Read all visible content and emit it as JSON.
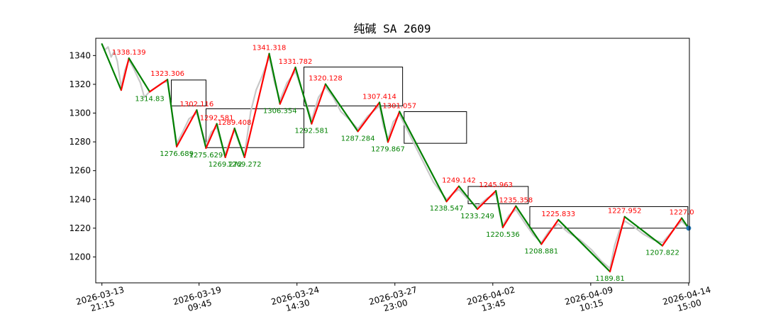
{
  "chart_data": {
    "type": "line",
    "title": "纯碱 SA 2609",
    "ylim": [
      1182,
      1352
    ],
    "x_index_range": [
      -8,
      762
    ],
    "yticks": [
      1200,
      1220,
      1240,
      1260,
      1280,
      1300,
      1320,
      1340
    ],
    "xticks": [
      {
        "x": 0,
        "label": [
          "2026-03-13",
          "21:15"
        ]
      },
      {
        "x": 126,
        "label": [
          "2026-03-19",
          "09:45"
        ]
      },
      {
        "x": 253,
        "label": [
          "2026-03-24",
          "14:30"
        ]
      },
      {
        "x": 380,
        "label": [
          "2026-03-27",
          "23:00"
        ]
      },
      {
        "x": 507,
        "label": [
          "2026-04-02",
          "13:45"
        ]
      },
      {
        "x": 634,
        "label": [
          "2026-04-09",
          "10:15"
        ]
      },
      {
        "x": 761,
        "label": [
          "2026-04-14",
          "15:00"
        ]
      }
    ],
    "colors": {
      "price": "#c8c8c8",
      "up_stroke": "#ff0000",
      "down_stroke": "#008000",
      "box": "#000000",
      "current_point": "#1f77b4"
    },
    "series": [
      {
        "name": "zigzag",
        "points": [
          {
            "x": 0,
            "y": 1348
          },
          {
            "x": 25,
            "y": 1316
          },
          {
            "x": 35,
            "y": 1338.139
          },
          {
            "x": 62,
            "y": 1314.83
          },
          {
            "x": 85,
            "y": 1323.306
          },
          {
            "x": 97,
            "y": 1276.689
          },
          {
            "x": 123,
            "y": 1302.116
          },
          {
            "x": 135,
            "y": 1275.629
          },
          {
            "x": 149,
            "y": 1292.581
          },
          {
            "x": 160,
            "y": 1269.272
          },
          {
            "x": 172,
            "y": 1289.408
          },
          {
            "x": 185,
            "y": 1269.272
          },
          {
            "x": 217,
            "y": 1341.318
          },
          {
            "x": 231,
            "y": 1306.354
          },
          {
            "x": 251,
            "y": 1331.782
          },
          {
            "x": 272,
            "y": 1292.581
          },
          {
            "x": 290,
            "y": 1320.128
          },
          {
            "x": 332,
            "y": 1287.284
          },
          {
            "x": 360,
            "y": 1307.414
          },
          {
            "x": 371,
            "y": 1279.867
          },
          {
            "x": 386,
            "y": 1301.057
          },
          {
            "x": 447,
            "y": 1238.547
          },
          {
            "x": 463,
            "y": 1249.142
          },
          {
            "x": 487,
            "y": 1233.249
          },
          {
            "x": 511,
            "y": 1245.963
          },
          {
            "x": 520,
            "y": 1220.536
          },
          {
            "x": 537,
            "y": 1235.358
          },
          {
            "x": 570,
            "y": 1208.881
          },
          {
            "x": 592,
            "y": 1225.833
          },
          {
            "x": 659,
            "y": 1189.81
          },
          {
            "x": 678,
            "y": 1227.952
          },
          {
            "x": 727,
            "y": 1207.822
          },
          {
            "x": 752,
            "y": 1227.0
          },
          {
            "x": 761,
            "y": 1220
          }
        ]
      },
      {
        "name": "price",
        "points": [
          {
            "x": 0,
            "y": 1348
          },
          {
            "x": 4,
            "y": 1344
          },
          {
            "x": 8,
            "y": 1346
          },
          {
            "x": 12,
            "y": 1339
          },
          {
            "x": 16,
            "y": 1343
          },
          {
            "x": 20,
            "y": 1336
          },
          {
            "x": 25,
            "y": 1318
          },
          {
            "x": 30,
            "y": 1330
          },
          {
            "x": 35,
            "y": 1337
          },
          {
            "x": 42,
            "y": 1330
          },
          {
            "x": 50,
            "y": 1321
          },
          {
            "x": 55,
            "y": 1311
          },
          {
            "x": 62,
            "y": 1315
          },
          {
            "x": 70,
            "y": 1318
          },
          {
            "x": 78,
            "y": 1321
          },
          {
            "x": 85,
            "y": 1322
          },
          {
            "x": 90,
            "y": 1304
          },
          {
            "x": 97,
            "y": 1279
          },
          {
            "x": 105,
            "y": 1287
          },
          {
            "x": 113,
            "y": 1296
          },
          {
            "x": 123,
            "y": 1300
          },
          {
            "x": 130,
            "y": 1287
          },
          {
            "x": 135,
            "y": 1278
          },
          {
            "x": 142,
            "y": 1287
          },
          {
            "x": 149,
            "y": 1290
          },
          {
            "x": 155,
            "y": 1279
          },
          {
            "x": 160,
            "y": 1271
          },
          {
            "x": 166,
            "y": 1281
          },
          {
            "x": 172,
            "y": 1288
          },
          {
            "x": 178,
            "y": 1279
          },
          {
            "x": 185,
            "y": 1271
          },
          {
            "x": 193,
            "y": 1301
          },
          {
            "x": 200,
            "y": 1316
          },
          {
            "x": 208,
            "y": 1326
          },
          {
            "x": 217,
            "y": 1339
          },
          {
            "x": 224,
            "y": 1321
          },
          {
            "x": 231,
            "y": 1309
          },
          {
            "x": 240,
            "y": 1321
          },
          {
            "x": 251,
            "y": 1329
          },
          {
            "x": 262,
            "y": 1312
          },
          {
            "x": 272,
            "y": 1295
          },
          {
            "x": 281,
            "y": 1311
          },
          {
            "x": 290,
            "y": 1318
          },
          {
            "x": 300,
            "y": 1311
          },
          {
            "x": 310,
            "y": 1301
          },
          {
            "x": 320,
            "y": 1296
          },
          {
            "x": 332,
            "y": 1289
          },
          {
            "x": 345,
            "y": 1298
          },
          {
            "x": 360,
            "y": 1305
          },
          {
            "x": 365,
            "y": 1291
          },
          {
            "x": 371,
            "y": 1282
          },
          {
            "x": 378,
            "y": 1294
          },
          {
            "x": 386,
            "y": 1299
          },
          {
            "x": 400,
            "y": 1284
          },
          {
            "x": 415,
            "y": 1268
          },
          {
            "x": 430,
            "y": 1252
          },
          {
            "x": 447,
            "y": 1240
          },
          {
            "x": 455,
            "y": 1244
          },
          {
            "x": 463,
            "y": 1247
          },
          {
            "x": 475,
            "y": 1240
          },
          {
            "x": 487,
            "y": 1235
          },
          {
            "x": 500,
            "y": 1241
          },
          {
            "x": 511,
            "y": 1244
          },
          {
            "x": 516,
            "y": 1230
          },
          {
            "x": 520,
            "y": 1222
          },
          {
            "x": 528,
            "y": 1229
          },
          {
            "x": 537,
            "y": 1233
          },
          {
            "x": 548,
            "y": 1224
          },
          {
            "x": 560,
            "y": 1215
          },
          {
            "x": 570,
            "y": 1210
          },
          {
            "x": 580,
            "y": 1218
          },
          {
            "x": 592,
            "y": 1223
          },
          {
            "x": 605,
            "y": 1217
          },
          {
            "x": 620,
            "y": 1212
          },
          {
            "x": 635,
            "y": 1205
          },
          {
            "x": 648,
            "y": 1197
          },
          {
            "x": 659,
            "y": 1192
          },
          {
            "x": 665,
            "y": 1208
          },
          {
            "x": 671,
            "y": 1218
          },
          {
            "x": 678,
            "y": 1225
          },
          {
            "x": 690,
            "y": 1221
          },
          {
            "x": 702,
            "y": 1216
          },
          {
            "x": 715,
            "y": 1212
          },
          {
            "x": 727,
            "y": 1210
          },
          {
            "x": 740,
            "y": 1218
          },
          {
            "x": 752,
            "y": 1225
          },
          {
            "x": 761,
            "y": 1220
          }
        ]
      }
    ],
    "pivot_labels": [
      {
        "x": 35,
        "y": 1338.139,
        "text": "1338.139",
        "kind": "high"
      },
      {
        "x": 62,
        "y": 1314.83,
        "text": "1314.83",
        "kind": "low"
      },
      {
        "x": 85,
        "y": 1323.306,
        "text": "1323.306",
        "kind": "high"
      },
      {
        "x": 97,
        "y": 1276.689,
        "text": "1276.689",
        "kind": "low"
      },
      {
        "x": 123,
        "y": 1302.116,
        "text": "1302.116",
        "kind": "high"
      },
      {
        "x": 135,
        "y": 1275.629,
        "text": "1275.629",
        "kind": "low"
      },
      {
        "x": 149,
        "y": 1292.581,
        "text": "1292.581",
        "kind": "high"
      },
      {
        "x": 160,
        "y": 1269.272,
        "text": "1269.272",
        "kind": "low"
      },
      {
        "x": 172,
        "y": 1289.408,
        "text": "1289.408",
        "kind": "high"
      },
      {
        "x": 185,
        "y": 1269.272,
        "text": "1269.272",
        "kind": "low"
      },
      {
        "x": 217,
        "y": 1341.318,
        "text": "1341.318",
        "kind": "high"
      },
      {
        "x": 231,
        "y": 1306.354,
        "text": "1306.354",
        "kind": "low"
      },
      {
        "x": 251,
        "y": 1331.782,
        "text": "1331.782",
        "kind": "high"
      },
      {
        "x": 272,
        "y": 1292.581,
        "text": "1292.581",
        "kind": "low"
      },
      {
        "x": 290,
        "y": 1320.128,
        "text": "1320.128",
        "kind": "high"
      },
      {
        "x": 332,
        "y": 1287.284,
        "text": "1287.284",
        "kind": "low"
      },
      {
        "x": 360,
        "y": 1307.414,
        "text": "1307.414",
        "kind": "high"
      },
      {
        "x": 371,
        "y": 1279.867,
        "text": "1279.867",
        "kind": "low"
      },
      {
        "x": 386,
        "y": 1301.057,
        "text": "1301.057",
        "kind": "high"
      },
      {
        "x": 447,
        "y": 1238.547,
        "text": "1238.547",
        "kind": "low"
      },
      {
        "x": 463,
        "y": 1249.142,
        "text": "1249.142",
        "kind": "high"
      },
      {
        "x": 487,
        "y": 1233.249,
        "text": "1233.249",
        "kind": "low"
      },
      {
        "x": 511,
        "y": 1245.963,
        "text": "1245.963",
        "kind": "high"
      },
      {
        "x": 520,
        "y": 1220.536,
        "text": "1220.536",
        "kind": "low"
      },
      {
        "x": 537,
        "y": 1235.358,
        "text": "1235.358",
        "kind": "high"
      },
      {
        "x": 570,
        "y": 1208.881,
        "text": "1208.881",
        "kind": "low"
      },
      {
        "x": 592,
        "y": 1225.833,
        "text": "1225.833",
        "kind": "high"
      },
      {
        "x": 659,
        "y": 1189.81,
        "text": "1189.81",
        "kind": "low"
      },
      {
        "x": 678,
        "y": 1227.952,
        "text": "1227.952",
        "kind": "high"
      },
      {
        "x": 727,
        "y": 1207.822,
        "text": "1207.822",
        "kind": "low"
      },
      {
        "x": 752,
        "y": 1227.0,
        "text": "1227.0",
        "kind": "high"
      }
    ],
    "boxes": [
      {
        "x0": 90,
        "x1": 135,
        "y0": 1305,
        "y1": 1323
      },
      {
        "x0": 135,
        "x1": 262,
        "y0": 1276,
        "y1": 1303
      },
      {
        "x0": 262,
        "x1": 390,
        "y0": 1305,
        "y1": 1332
      },
      {
        "x0": 392,
        "x1": 473,
        "y0": 1279,
        "y1": 1301
      },
      {
        "x0": 475,
        "x1": 553,
        "y0": 1237,
        "y1": 1249
      },
      {
        "x0": 555,
        "x1": 760,
        "y0": 1220,
        "y1": 1235
      }
    ]
  }
}
